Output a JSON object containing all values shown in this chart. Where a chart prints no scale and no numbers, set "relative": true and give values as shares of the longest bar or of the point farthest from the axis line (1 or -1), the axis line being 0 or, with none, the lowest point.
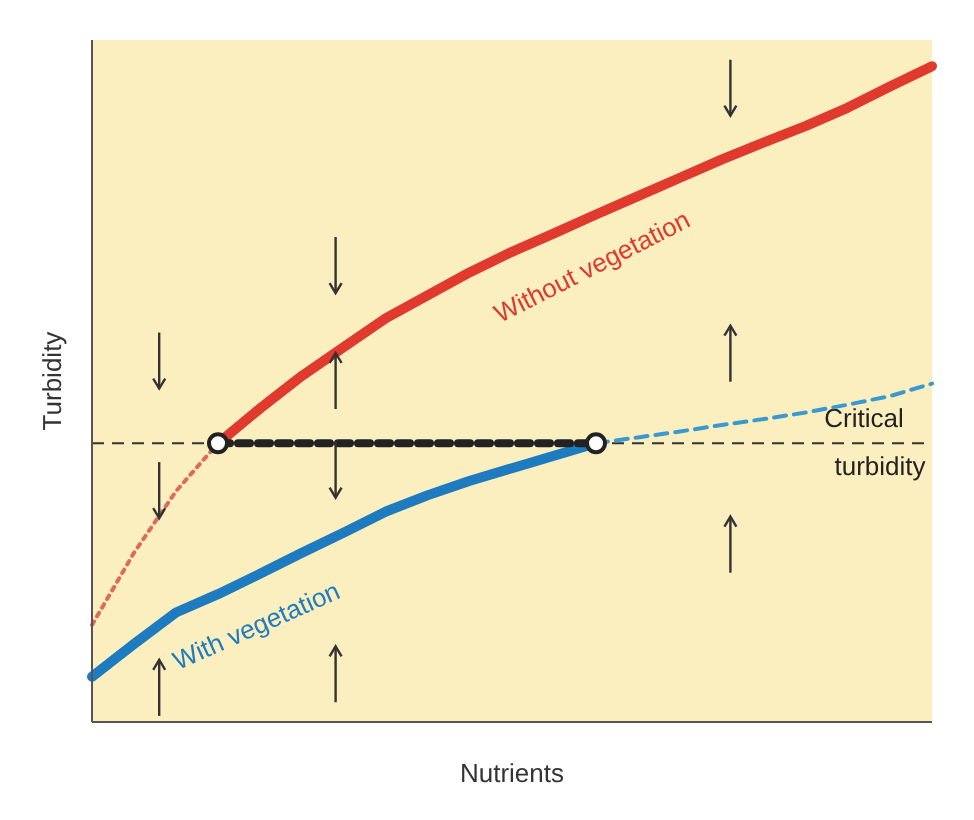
{
  "chart_data": {
    "type": "line",
    "relative": true,
    "xlabel": "Nutrients",
    "ylabel": "Turbidity",
    "tick_labels": false,
    "grid": false,
    "legend": false,
    "marker": "none",
    "categories": [
      null,
      null,
      null,
      null,
      null,
      null,
      null,
      null,
      null,
      null,
      null,
      null,
      null,
      null,
      null,
      null,
      null,
      null,
      null,
      null,
      null
    ],
    "series": [
      {
        "name": "Without vegetation",
        "color": "#e03a2f",
        "line_style": "solid",
        "values": [
          null,
          null,
          null,
          0.425,
          0.478,
          0.528,
          0.572,
          0.616,
          0.651,
          0.686,
          0.717,
          0.745,
          0.774,
          0.802,
          0.83,
          0.858,
          0.884,
          0.909,
          0.937,
          0.969,
          1.0
        ]
      },
      {
        "color": "#e06a5a",
        "line_style": "dotted",
        "values": [
          0.148,
          0.258,
          0.352,
          0.425,
          null,
          null,
          null,
          null,
          null,
          null,
          null,
          null,
          null,
          null,
          null,
          null,
          null,
          null,
          null,
          null,
          null
        ]
      },
      {
        "name": "With vegetation",
        "color": "#1f7bbf",
        "line_style": "solid",
        "values": [
          0.069,
          0.119,
          0.167,
          0.195,
          0.226,
          0.258,
          0.289,
          0.321,
          0.346,
          0.368,
          0.387,
          0.406,
          0.425,
          null,
          null,
          null,
          null,
          null,
          null,
          null,
          null
        ]
      },
      {
        "color": "#3a9ad0",
        "line_style": "dashed",
        "values": [
          null,
          null,
          null,
          null,
          null,
          null,
          null,
          null,
          null,
          null,
          null,
          null,
          0.425,
          0.434,
          0.443,
          0.453,
          0.462,
          0.472,
          0.484,
          0.497,
          0.516
        ]
      },
      {
        "color": "#222222",
        "line_style": "dashed",
        "marker": "circle",
        "values": [
          null,
          null,
          null,
          0.425,
          null,
          null,
          null,
          null,
          null,
          null,
          null,
          null,
          0.425,
          null,
          null,
          null,
          null,
          null,
          null,
          null,
          null
        ]
      }
    ],
    "ref_lines": [
      {
        "axis": "y",
        "value": 0.425,
        "label": "Critical turbidity",
        "color": "#333333",
        "line_style": "dashed"
      }
    ]
  }
}
